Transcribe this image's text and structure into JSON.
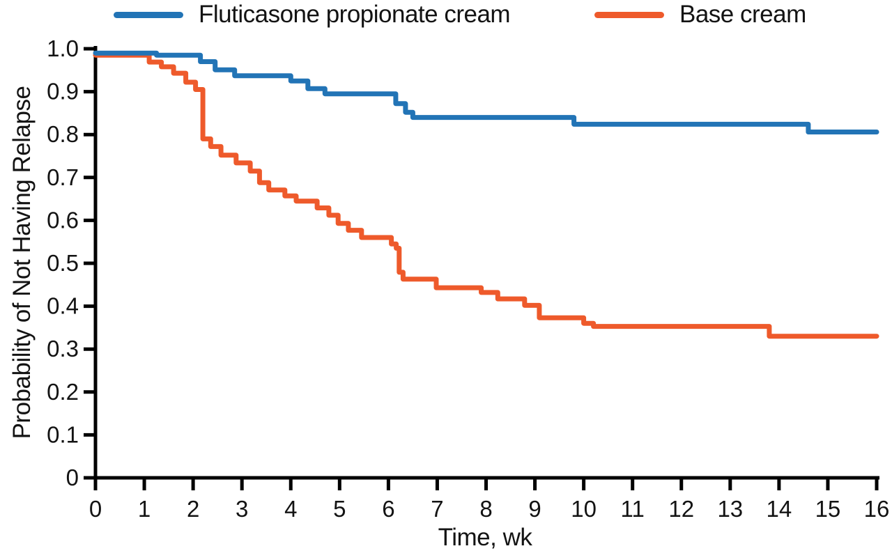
{
  "chart_data": {
    "type": "line",
    "subtype": "kaplan-meier-step",
    "title": "",
    "xlabel": "Time, wk",
    "ylabel": "Probability of Not Having Relapse",
    "xlim": [
      0,
      16
    ],
    "ylim": [
      0,
      1.0
    ],
    "x_ticks": [
      0,
      1,
      2,
      3,
      4,
      5,
      6,
      7,
      8,
      9,
      10,
      11,
      12,
      13,
      14,
      15,
      16
    ],
    "x_tick_labels": [
      "0",
      "1",
      "2",
      "3",
      "4",
      "5",
      "6",
      "7",
      "8",
      "9",
      "10",
      "11",
      "12",
      "13",
      "14",
      "15",
      "16"
    ],
    "y_ticks": [
      1.0,
      0.9,
      0.8,
      0.7,
      0.6,
      0.5,
      0.4,
      0.3,
      0.2,
      0.1,
      0
    ],
    "y_tick_labels": [
      "1.0",
      "0.9",
      "0.8",
      "0.7",
      "0.6",
      "0.5",
      "0.4",
      "0.3",
      "0.2",
      "0.1",
      "0"
    ],
    "grid": false,
    "legend_position": "top",
    "axis_color": "#000000",
    "background_color": "#ffffff",
    "series": [
      {
        "name": "Fluticasone propionate cream",
        "color": "#2274B6",
        "points": [
          [
            0,
            0.99
          ],
          [
            1.25,
            0.985
          ],
          [
            2.15,
            0.97
          ],
          [
            2.45,
            0.951
          ],
          [
            2.85,
            0.937
          ],
          [
            4.0,
            0.925
          ],
          [
            4.35,
            0.907
          ],
          [
            4.7,
            0.895
          ],
          [
            6.15,
            0.872
          ],
          [
            6.35,
            0.852
          ],
          [
            6.5,
            0.84
          ],
          [
            9.8,
            0.824
          ],
          [
            14.6,
            0.806
          ],
          [
            16,
            0.806
          ]
        ]
      },
      {
        "name": "Base cream",
        "color": "#EE5A2B",
        "points": [
          [
            0,
            0.985
          ],
          [
            1.1,
            0.969
          ],
          [
            1.35,
            0.958
          ],
          [
            1.6,
            0.943
          ],
          [
            1.85,
            0.922
          ],
          [
            2.05,
            0.905
          ],
          [
            2.2,
            0.79
          ],
          [
            2.36,
            0.772
          ],
          [
            2.57,
            0.752
          ],
          [
            2.88,
            0.734
          ],
          [
            3.17,
            0.715
          ],
          [
            3.36,
            0.688
          ],
          [
            3.55,
            0.671
          ],
          [
            3.88,
            0.657
          ],
          [
            4.11,
            0.645
          ],
          [
            4.54,
            0.629
          ],
          [
            4.78,
            0.612
          ],
          [
            4.97,
            0.593
          ],
          [
            5.18,
            0.577
          ],
          [
            5.45,
            0.56
          ],
          [
            6.06,
            0.545
          ],
          [
            6.16,
            0.535
          ],
          [
            6.22,
            0.479
          ],
          [
            6.3,
            0.463
          ],
          [
            6.98,
            0.443
          ],
          [
            7.9,
            0.432
          ],
          [
            8.24,
            0.417
          ],
          [
            8.79,
            0.402
          ],
          [
            9.09,
            0.373
          ],
          [
            10.0,
            0.36
          ],
          [
            10.2,
            0.353
          ],
          [
            13.8,
            0.33
          ],
          [
            16,
            0.33
          ]
        ]
      }
    ]
  }
}
